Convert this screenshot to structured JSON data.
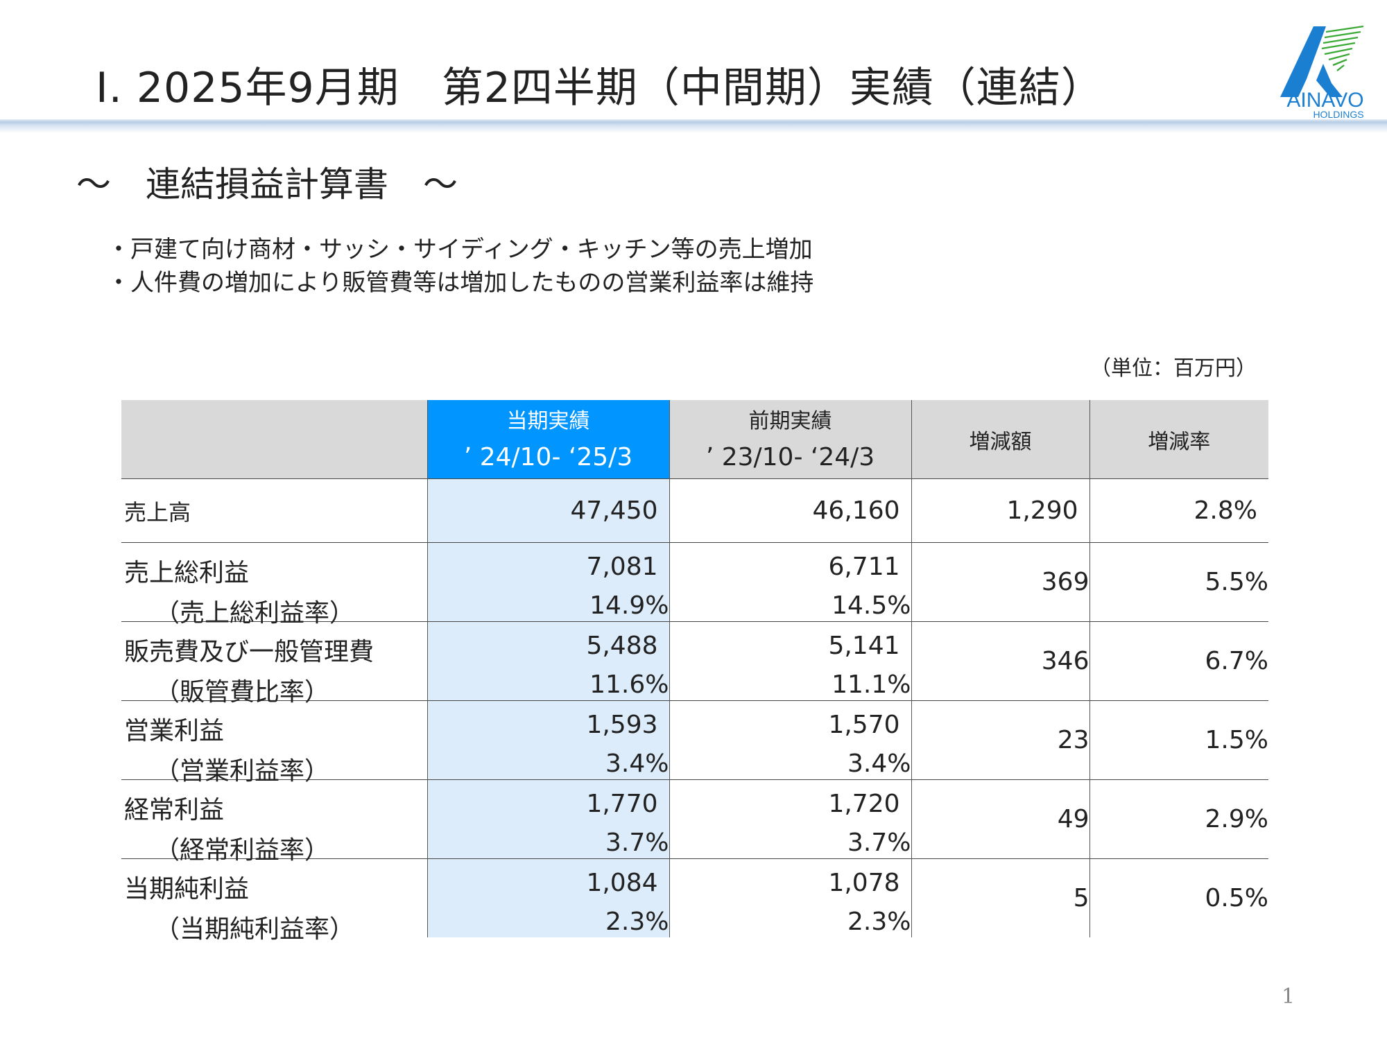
{
  "header": {
    "title": "Ⅰ. 2025年9月期　第2四半期（中間期）実績（連結）",
    "logo_text": "AINAVO",
    "logo_subtext": "HOLDINGS"
  },
  "section_title": "～　連結損益計算書　～",
  "bullets": [
    "・戸建て向け商材・サッシ・サイディング・キッチン等の売上増加",
    "・人件費の増加により販管費等は増加したものの営業利益率は維持"
  ],
  "unit_note": "（単位：百万円）",
  "table": {
    "headers": {
      "current_label": "当期実績",
      "current_period": "’ 24/10- ‘25/3",
      "prior_label": "前期実績",
      "prior_period": "’ 23/10- ‘24/3",
      "change_amount": "増減額",
      "change_rate": "増減率"
    },
    "rows": [
      {
        "label": "売上高",
        "current": "47,450",
        "prior": "46,160",
        "change": "1,290",
        "rate": "2.8%"
      },
      {
        "label": "売上総利益",
        "sublabel": "（売上総利益率）",
        "current": "7,081",
        "current_ratio": "14.9%",
        "prior": "6,711",
        "prior_ratio": "14.5%",
        "change": "369",
        "rate": "5.5%"
      },
      {
        "label": "販売費及び一般管理費",
        "sublabel": "（販管費比率）",
        "current": "5,488",
        "current_ratio": "11.6%",
        "prior": "5,141",
        "prior_ratio": "11.1%",
        "change": "346",
        "rate": "6.7%"
      },
      {
        "label": "営業利益",
        "sublabel": "（営業利益率）",
        "current": "1,593",
        "current_ratio": "3.4%",
        "prior": "1,570",
        "prior_ratio": "3.4%",
        "change": "23",
        "rate": "1.5%"
      },
      {
        "label": "経常利益",
        "sublabel": "（経常利益率）",
        "current": "1,770",
        "current_ratio": "3.7%",
        "prior": "1,720",
        "prior_ratio": "3.7%",
        "change": "49",
        "rate": "2.9%"
      },
      {
        "label": "当期純利益",
        "sublabel": "（当期純利益率）",
        "current": "1,084",
        "current_ratio": "2.3%",
        "prior": "1,078",
        "prior_ratio": "2.3%",
        "change": "5",
        "rate": "0.5%"
      }
    ]
  },
  "page_number": "1",
  "colors": {
    "current_header": "#0095ff",
    "current_column": "#dcecfb",
    "header_gray": "#d9d9d9",
    "logo_blue": "#1b7fd1",
    "logo_green": "#3aa935"
  }
}
